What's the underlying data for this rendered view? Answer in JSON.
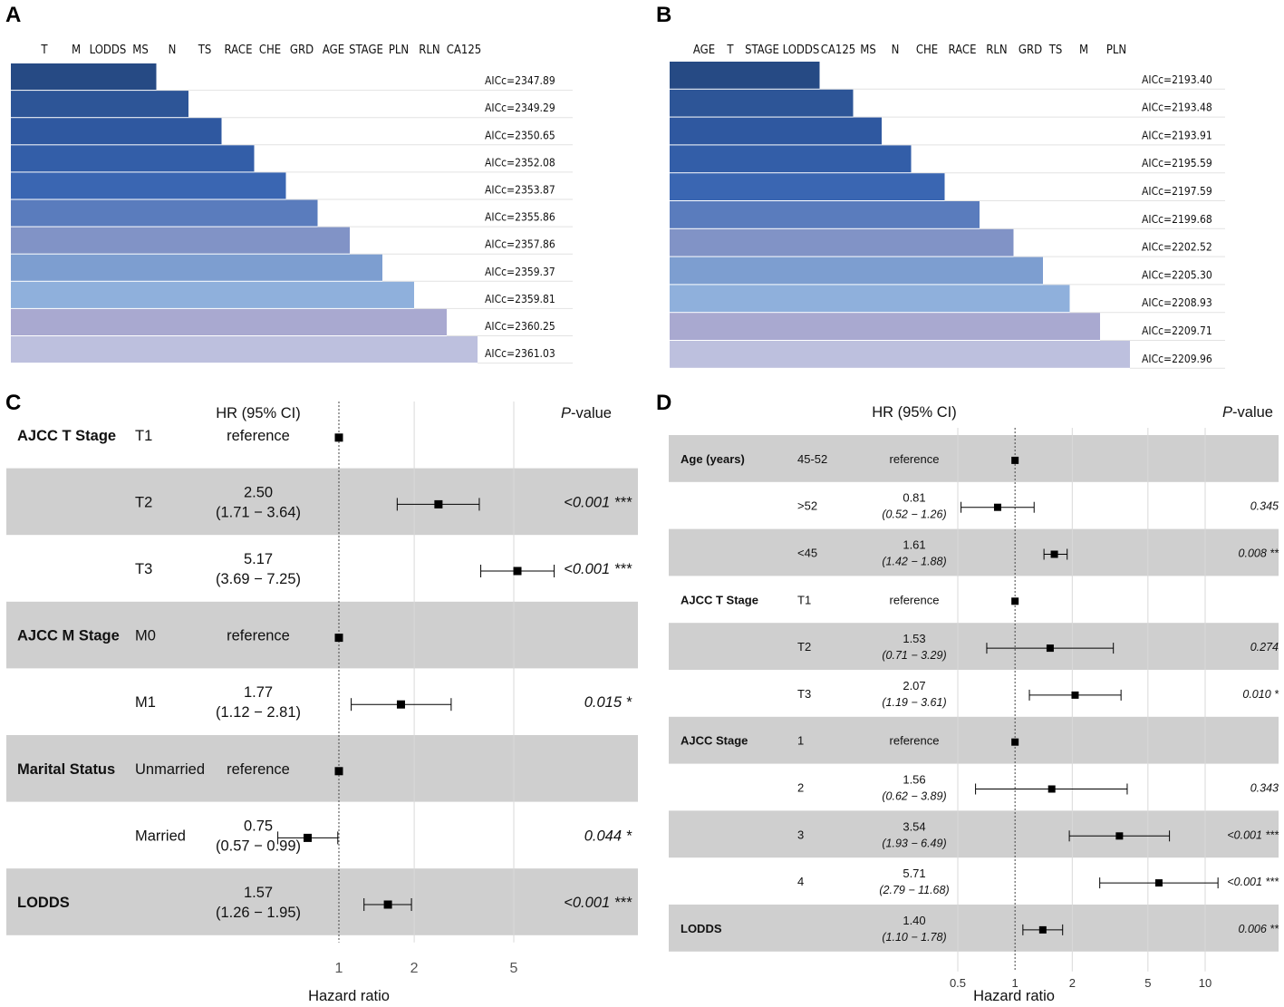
{
  "chart_data": [
    {
      "panel": "A",
      "type": "bar",
      "variables": [
        "T",
        "M",
        "LODDS",
        "MS",
        "N",
        "TS",
        "RACE",
        "CHE",
        "GRD",
        "AGE",
        "STAGE",
        "PLN",
        "RLN",
        "CA125"
      ],
      "aicc_labels": [
        "AICc=2347.89",
        "AICc=2349.29",
        "AICc=2350.65",
        "AICc=2352.08",
        "AICc=2353.87",
        "AICc=2355.86",
        "AICc=2357.86",
        "AICc=2359.37",
        "AICc=2359.81",
        "AICc=2360.25",
        "AICc=2361.03"
      ],
      "aicc": [
        2347.89,
        2349.29,
        2350.65,
        2352.08,
        2353.87,
        2355.86,
        2357.86,
        2359.37,
        2359.81,
        2360.25,
        2361.03
      ],
      "variables_in_model": [
        4,
        5,
        6,
        7,
        8,
        9,
        10,
        11,
        12,
        13,
        14
      ]
    },
    {
      "panel": "B",
      "type": "bar",
      "variables": [
        "AGE",
        "T",
        "STAGE",
        "LODDS",
        "CA125",
        "MS",
        "N",
        "CHE",
        "RACE",
        "RLN",
        "GRD",
        "TS",
        "M",
        "PLN"
      ],
      "aicc_labels": [
        "AICc=2193.40",
        "AICc=2193.48",
        "AICc=2193.91",
        "AICc=2195.59",
        "AICc=2197.59",
        "AICc=2199.68",
        "AICc=2202.52",
        "AICc=2205.30",
        "AICc=2208.93",
        "AICc=2209.71",
        "AICc=2209.96"
      ],
      "aicc": [
        2193.4,
        2193.48,
        2193.91,
        2195.59,
        2197.59,
        2199.68,
        2202.52,
        2205.3,
        2208.93,
        2209.71,
        2209.96
      ],
      "variables_in_model": [
        4,
        5,
        6,
        7,
        8,
        9,
        10,
        11,
        12,
        13,
        14
      ]
    },
    {
      "panel": "C",
      "type": "forest",
      "header": {
        "hr": "HR (95% CI)",
        "p_prefix": "P",
        "p_suffix": "-value"
      },
      "xlabel": "Hazard ratio",
      "ticks": [
        "1",
        "2",
        "5"
      ],
      "tick_values": [
        1,
        2,
        5
      ],
      "xlim": [
        0.5,
        8
      ],
      "rows": [
        {
          "group": "AJCC T Stage",
          "level": "T1",
          "hr": "reference",
          "ci": "",
          "p": "",
          "est": 1,
          "lo": null,
          "hi": null,
          "shade": false
        },
        {
          "group": "",
          "level": "T2",
          "hr": "2.50",
          "ci": "(1.71 − 3.64)",
          "p": "<0.001 ***",
          "est": 2.5,
          "lo": 1.71,
          "hi": 3.64,
          "shade": true
        },
        {
          "group": "",
          "level": "T3",
          "hr": "5.17",
          "ci": "(3.69 − 7.25)",
          "p": "<0.001 ***",
          "est": 5.17,
          "lo": 3.69,
          "hi": 7.25,
          "shade": false
        },
        {
          "group": "AJCC M Stage",
          "level": "M0",
          "hr": "reference",
          "ci": "",
          "p": "",
          "est": 1,
          "lo": null,
          "hi": null,
          "shade": true
        },
        {
          "group": "",
          "level": "M1",
          "hr": "1.77",
          "ci": "(1.12 − 2.81)",
          "p": "0.015 *",
          "est": 1.77,
          "lo": 1.12,
          "hi": 2.81,
          "shade": false
        },
        {
          "group": "Marital Status",
          "level": "Unmarried",
          "hr": "reference",
          "ci": "",
          "p": "",
          "est": 1,
          "lo": null,
          "hi": null,
          "shade": true
        },
        {
          "group": "",
          "level": "Married",
          "hr": "0.75",
          "ci": "(0.57 − 0.99)",
          "p": "0.044 *",
          "est": 0.75,
          "lo": 0.57,
          "hi": 0.99,
          "shade": false
        },
        {
          "group": "LODDS",
          "level": "",
          "hr": "1.57",
          "ci": "(1.26 − 1.95)",
          "p": "<0.001 ***",
          "est": 1.57,
          "lo": 1.26,
          "hi": 1.95,
          "shade": true
        }
      ]
    },
    {
      "panel": "D",
      "type": "forest",
      "header": {
        "hr": "HR (95% CI)",
        "p_prefix": "P",
        "p_suffix": "-value"
      },
      "xlabel": "Hazard ratio",
      "ticks": [
        "0.5",
        "1",
        "2",
        "5",
        "10"
      ],
      "tick_values": [
        0.5,
        1,
        2,
        5,
        10
      ],
      "xlim": [
        0.3,
        20
      ],
      "rows": [
        {
          "group": "Age (years)",
          "level": "45-52",
          "hr": "reference",
          "ci": "",
          "p": "",
          "est": 1,
          "lo": null,
          "hi": null,
          "shade": true
        },
        {
          "group": "",
          "level": ">52",
          "hr": "0.81",
          "ci": "(0.52 −  1.26)",
          "p": "0.345",
          "est": 0.81,
          "lo": 0.52,
          "hi": 1.26,
          "shade": false
        },
        {
          "group": "",
          "level": "<45",
          "hr": "1.61",
          "ci": "(1.42 −  1.88)",
          "p": "0.008 **",
          "est": 1.61,
          "lo": 1.42,
          "hi": 1.88,
          "shade": true
        },
        {
          "group": "AJCC T Stage",
          "level": "T1",
          "hr": "reference",
          "ci": "",
          "p": "",
          "est": 1,
          "lo": null,
          "hi": null,
          "shade": false
        },
        {
          "group": "",
          "level": "T2",
          "hr": "1.53",
          "ci": "(0.71 −  3.29)",
          "p": "0.274",
          "est": 1.53,
          "lo": 0.71,
          "hi": 3.29,
          "shade": true
        },
        {
          "group": "",
          "level": "T3",
          "hr": "2.07",
          "ci": "(1.19 −  3.61)",
          "p": "0.010 *",
          "est": 2.07,
          "lo": 1.19,
          "hi": 3.61,
          "shade": false
        },
        {
          "group": "AJCC Stage",
          "level": "1",
          "hr": "reference",
          "ci": "",
          "p": "",
          "est": 1,
          "lo": null,
          "hi": null,
          "shade": true
        },
        {
          "group": "",
          "level": "2",
          "hr": "1.56",
          "ci": "(0.62 −  3.89)",
          "p": "0.343",
          "est": 1.56,
          "lo": 0.62,
          "hi": 3.89,
          "shade": false
        },
        {
          "group": "",
          "level": "3",
          "hr": "3.54",
          "ci": "(1.93 −  6.49)",
          "p": "<0.001 ***",
          "est": 3.54,
          "lo": 1.93,
          "hi": 6.49,
          "shade": true
        },
        {
          "group": "",
          "level": "4",
          "hr": "5.71",
          "ci": "(2.79 − 11.68)",
          "p": "<0.001 ***",
          "est": 5.71,
          "lo": 2.79,
          "hi": 11.68,
          "shade": false
        },
        {
          "group": "LODDS",
          "level": "",
          "hr": "1.40",
          "ci": "(1.10 −  1.78)",
          "p": "0.006 **",
          "est": 1.4,
          "lo": 1.1,
          "hi": 1.78,
          "shade": true
        }
      ]
    }
  ],
  "panel_labels": [
    "A",
    "B",
    "C",
    "D"
  ],
  "colors": {
    "bar_colors": [
      "#264a84",
      "#2d5597",
      "#2f58a0",
      "#335ea8",
      "#3a66b2",
      "#5a7cbd",
      "#8193c6",
      "#7d9ed0",
      "#8fb0dc",
      "#a9a9d0",
      "#bdc0de"
    ],
    "shade": "#cfcfcf",
    "grid": "#dddddd",
    "marker": "#000000"
  }
}
